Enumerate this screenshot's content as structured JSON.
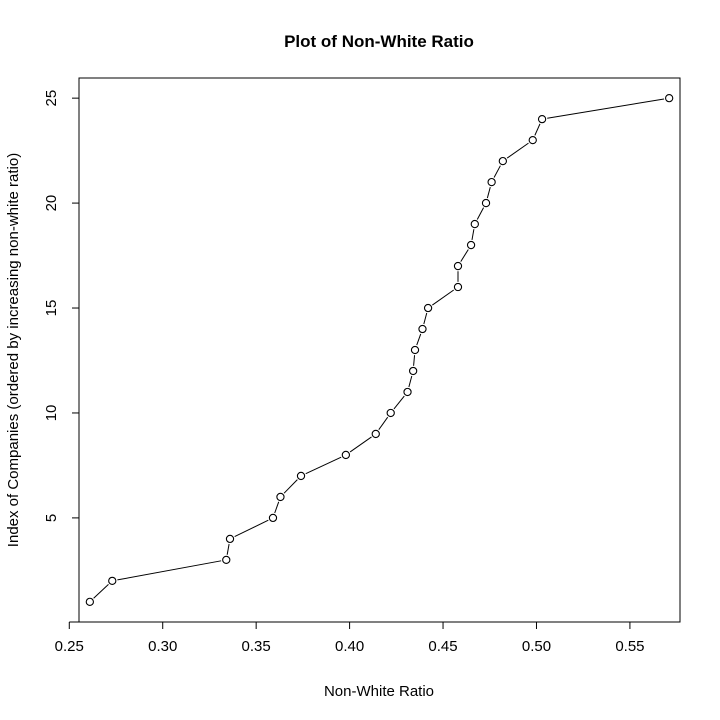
{
  "chart_data": {
    "type": "line",
    "title": "Plot of Non-White Ratio",
    "xlabel": "Non-White Ratio",
    "ylabel": "Index of Companies (ordered by increasing non-white ratio)",
    "x_ticks": [
      0.25,
      0.3,
      0.35,
      0.4,
      0.45,
      0.5,
      0.55
    ],
    "x_tick_labels": [
      "0.25",
      "0.30",
      "0.35",
      "0.40",
      "0.45",
      "0.50",
      "0.55"
    ],
    "y_ticks": [
      5,
      10,
      15,
      20,
      25
    ],
    "y_tick_labels": [
      "5",
      "10",
      "15",
      "20",
      "25"
    ],
    "series": [
      {
        "x": [
          0.261,
          0.273,
          0.334,
          0.336,
          0.359,
          0.363,
          0.374,
          0.398,
          0.414,
          0.422,
          0.431,
          0.434,
          0.435,
          0.439,
          0.442,
          0.458,
          0.458,
          0.465,
          0.467,
          0.473,
          0.476,
          0.482,
          0.498,
          0.503,
          0.571
        ],
        "y": [
          1,
          2,
          3,
          4,
          5,
          6,
          7,
          8,
          9,
          10,
          11,
          12,
          13,
          14,
          15,
          16,
          17,
          18,
          19,
          20,
          21,
          22,
          23,
          24,
          25
        ]
      }
    ],
    "xlim": [
      0.2552,
      0.5768
    ],
    "ylim": [
      0.04,
      25.96
    ],
    "grid": false,
    "marker": "open-circle",
    "line_style": "type-b (points connected by lines with gaps)"
  }
}
